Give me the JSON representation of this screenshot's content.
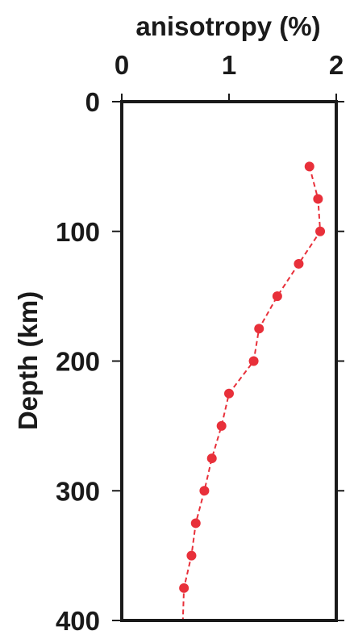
{
  "chart_data": {
    "type": "line",
    "xlabel": "anisotropy (%)",
    "ylabel": "Depth (km)",
    "xlim": [
      0,
      2
    ],
    "ylim": [
      0,
      400
    ],
    "y_inverted": true,
    "x_axis_position": "top",
    "x_ticks": [
      "0",
      "1",
      "2"
    ],
    "y_ticks": [
      "0",
      "100",
      "200",
      "300",
      "400"
    ],
    "grid": false,
    "series": [
      {
        "line_style": "dashed",
        "marker": "circle",
        "color": "#e8303a",
        "points": [
          {
            "x": 1.75,
            "y": 50
          },
          {
            "x": 1.83,
            "y": 75
          },
          {
            "x": 1.85,
            "y": 100
          },
          {
            "x": 1.65,
            "y": 125
          },
          {
            "x": 1.45,
            "y": 150
          },
          {
            "x": 1.28,
            "y": 175
          },
          {
            "x": 1.23,
            "y": 200
          },
          {
            "x": 1.0,
            "y": 225
          },
          {
            "x": 0.93,
            "y": 250
          },
          {
            "x": 0.84,
            "y": 275
          },
          {
            "x": 0.77,
            "y": 300
          },
          {
            "x": 0.69,
            "y": 325
          },
          {
            "x": 0.65,
            "y": 350
          },
          {
            "x": 0.58,
            "y": 375
          },
          {
            "x": 0.57,
            "y": 400
          }
        ]
      }
    ],
    "colors": {
      "axis": "#1a1a1a",
      "series": "#e8303a"
    }
  }
}
